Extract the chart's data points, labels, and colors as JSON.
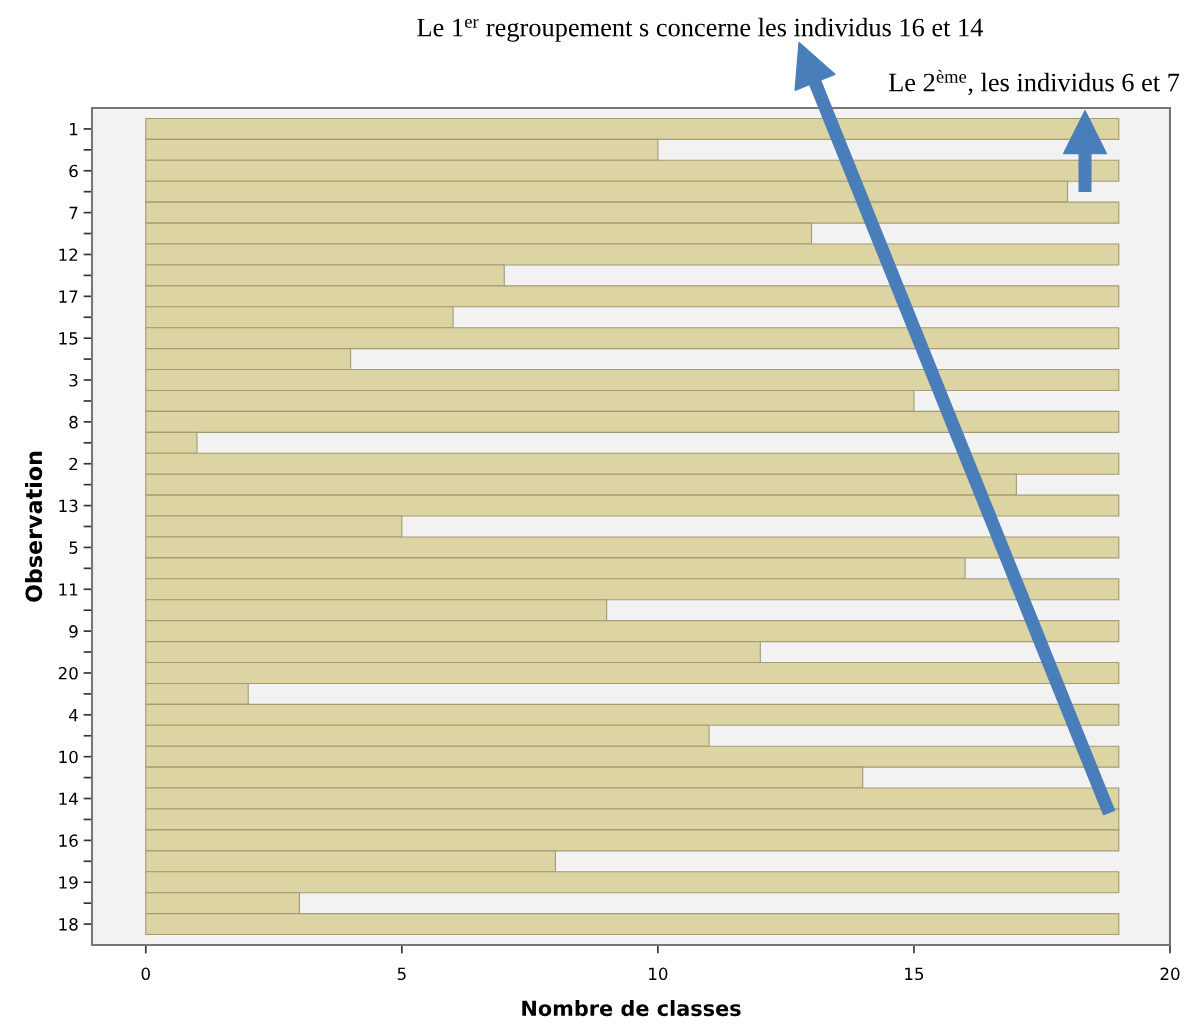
{
  "chart_data": {
    "type": "bar",
    "orientation": "horizontal",
    "xlabel": "Nombre de classes",
    "ylabel": "Observation",
    "categories": [
      "1",
      null,
      "6",
      null,
      "7",
      null,
      "12",
      null,
      "17",
      null,
      "15",
      null,
      "3",
      null,
      "8",
      null,
      "2",
      null,
      "13",
      null,
      "5",
      null,
      "11",
      null,
      "9",
      null,
      "20",
      null,
      "4",
      null,
      "10",
      null,
      "14",
      null,
      "16",
      null,
      "19",
      null,
      "18"
    ],
    "values": [
      19,
      10,
      19,
      18,
      19,
      13,
      19,
      7,
      19,
      6,
      19,
      4,
      19,
      15,
      19,
      1,
      19,
      17,
      19,
      5,
      19,
      16,
      19,
      9,
      19,
      12,
      19,
      2,
      19,
      11,
      19,
      14,
      19,
      19,
      19,
      8,
      19,
      3,
      19
    ],
    "color": "#dcd4a2",
    "xlim": [
      -1.05,
      20
    ],
    "xticks": [
      0,
      5,
      10,
      15,
      20
    ],
    "grid": false,
    "legend": false,
    "annotations": [
      "Le 1$^{er}$ regroupement s concerne les individus 16 et 14",
      "Le 2$^{ème}$, les individus 6 et 7"
    ]
  }
}
